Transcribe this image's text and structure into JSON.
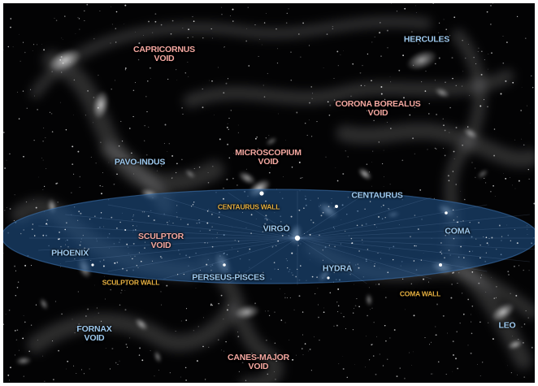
{
  "colors": {
    "void_label": "#f4a7a0",
    "cluster_label": "#9ec9ee",
    "wall_label": "#e6b040",
    "background": "#030304",
    "plane": "#1e4f85"
  },
  "labels": {
    "capricornus": {
      "line1": "CAPRICORNUS",
      "line2": "VOID"
    },
    "hercules": {
      "text": "HERCULES"
    },
    "corona": {
      "line1": "CORONA BOREALUS",
      "line2": "VOID"
    },
    "microscopium": {
      "line1": "MICROSCOPIUM",
      "line2": "VOID"
    },
    "pavo": {
      "text": "PAVO-INDUS"
    },
    "centaurus_wall": {
      "text": "CENTAURUS WALL"
    },
    "centaurus": {
      "text": "CENTAURUS"
    },
    "sculptor": {
      "line1": "SCULPTOR",
      "line2": "VOID"
    },
    "virgo": {
      "text": "VIRGO"
    },
    "coma": {
      "text": "COMA"
    },
    "phoenix": {
      "text": "PHOENIX"
    },
    "hydra": {
      "text": "HYDRA"
    },
    "sculptor_wall": {
      "text": "SCULPTOR WALL"
    },
    "perseus": {
      "text": "PERSEUS-PISCES"
    },
    "coma_wall": {
      "text": "COMA WALL"
    },
    "fornax": {
      "line1": "FORNAX",
      "line2": "VOID"
    },
    "leo": {
      "text": "LEO"
    },
    "canes": {
      "line1": "CANES-MAJOR",
      "line2": "VOID"
    }
  }
}
